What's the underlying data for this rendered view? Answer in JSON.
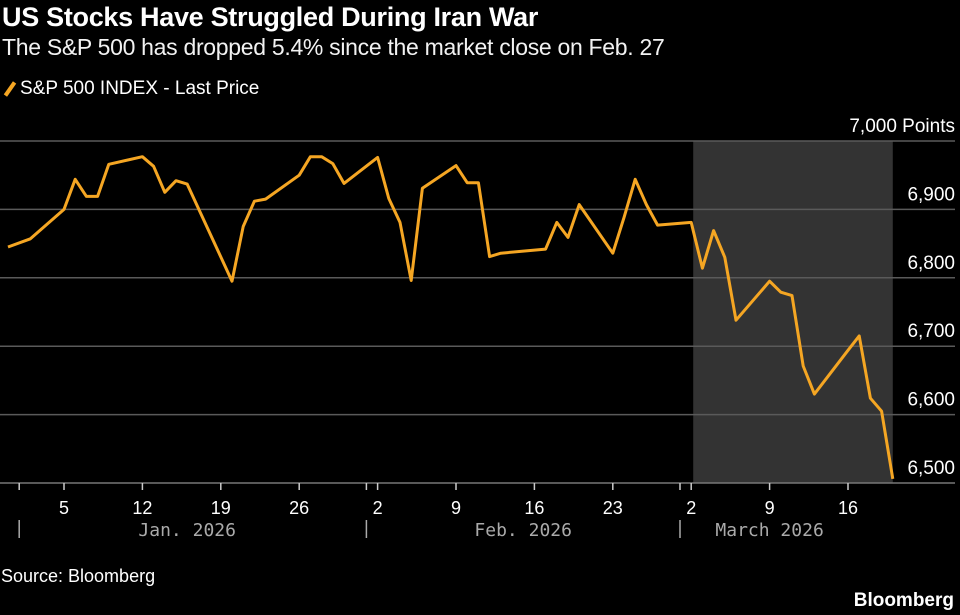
{
  "title": "US Stocks Have Struggled During Iran War",
  "subtitle": "The S&P 500 has dropped 5.4% since the market close on Feb. 27",
  "source": "Source: Bloomberg",
  "brand": "Bloomberg",
  "colors": {
    "line": "#f5a623",
    "shade": "#333333",
    "grid": "#5a5a5a",
    "background": "#000000"
  },
  "chart_data": {
    "type": "line",
    "title": "US Stocks Have Struggled During Iran War",
    "legend": [
      {
        "name": "S&P 500 INDEX - Last Price",
        "color": "#f5a623"
      }
    ],
    "legend_placement": "top-left",
    "ylabel": "Points",
    "ylim": [
      6500,
      7000
    ],
    "y_ticks": [
      {
        "value": 7000,
        "label": "7,000 Points"
      },
      {
        "value": 6900,
        "label": "6,900"
      },
      {
        "value": 6800,
        "label": "6,800"
      },
      {
        "value": 6700,
        "label": "6,700"
      },
      {
        "value": 6600,
        "label": "6,600"
      },
      {
        "value": 6500,
        "label": "6,500"
      }
    ],
    "x_ticks": [
      {
        "date": "2026-01-05",
        "label": "5"
      },
      {
        "date": "2026-01-12",
        "label": "12"
      },
      {
        "date": "2026-01-19",
        "label": "19"
      },
      {
        "date": "2026-01-26",
        "label": "26"
      },
      {
        "date": "2026-02-02",
        "label": "2"
      },
      {
        "date": "2026-02-09",
        "label": "9"
      },
      {
        "date": "2026-02-16",
        "label": "16"
      },
      {
        "date": "2026-02-23",
        "label": "23"
      },
      {
        "date": "2026-03-02",
        "label": "2"
      },
      {
        "date": "2026-03-09",
        "label": "9"
      },
      {
        "date": "2026-03-16",
        "label": "16"
      }
    ],
    "month_labels": [
      {
        "start": "2026-01-01",
        "center": "2026-01-16",
        "label": "Jan. 2026"
      },
      {
        "start": "2026-02-01",
        "center": "2026-02-15",
        "label": "Feb. 2026"
      },
      {
        "start": "2026-03-01",
        "center": "2026-03-09",
        "label": "March 2026"
      }
    ],
    "shaded_range": [
      "2026-03-02",
      "2026-03-20"
    ],
    "grid": true,
    "series": [
      {
        "name": "S&P 500 INDEX - Last Price",
        "x": [
          "2025-12-31",
          "2026-01-02",
          "2026-01-05",
          "2026-01-06",
          "2026-01-07",
          "2026-01-08",
          "2026-01-09",
          "2026-01-12",
          "2026-01-13",
          "2026-01-14",
          "2026-01-15",
          "2026-01-16",
          "2026-01-20",
          "2026-01-21",
          "2026-01-22",
          "2026-01-23",
          "2026-01-26",
          "2026-01-27",
          "2026-01-28",
          "2026-01-29",
          "2026-01-30",
          "2026-02-02",
          "2026-02-03",
          "2026-02-04",
          "2026-02-05",
          "2026-02-06",
          "2026-02-09",
          "2026-02-10",
          "2026-02-11",
          "2026-02-12",
          "2026-02-13",
          "2026-02-17",
          "2026-02-18",
          "2026-02-19",
          "2026-02-20",
          "2026-02-23",
          "2026-02-24",
          "2026-02-25",
          "2026-02-26",
          "2026-02-27",
          "2026-03-02",
          "2026-03-03",
          "2026-03-04",
          "2026-03-05",
          "2026-03-06",
          "2026-03-09",
          "2026-03-10",
          "2026-03-11",
          "2026-03-12",
          "2026-03-13",
          "2026-03-16",
          "2026-03-17",
          "2026-03-18",
          "2026-03-19",
          "2026-03-20"
        ],
        "values": [
          6845,
          6857,
          6900,
          6944,
          6919,
          6919,
          6966,
          6977,
          6963,
          6925,
          6942,
          6937,
          6795,
          6875,
          6912,
          6915,
          6950,
          6977,
          6977,
          6967,
          6938,
          6976,
          6916,
          6881,
          6796,
          6931,
          6964,
          6939,
          6939,
          6831,
          6836,
          6842,
          6881,
          6859,
          6907,
          6836,
          6888,
          6944,
          6907,
          6877,
          6881,
          6814,
          6869,
          6830,
          6738,
          6795,
          6779,
          6774,
          6671,
          6630,
          6694,
          6715,
          6624,
          6605,
          6506
        ]
      }
    ]
  }
}
